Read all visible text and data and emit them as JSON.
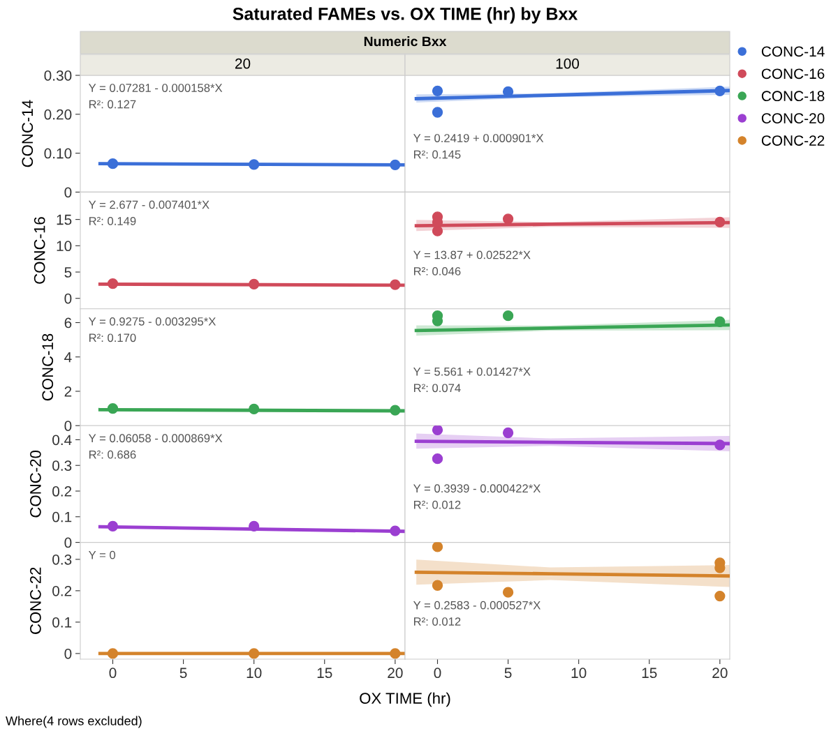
{
  "chart_data": [
    {
      "type": "scatter",
      "subtitle": "20",
      "ylabel": "CONC-14",
      "xlim": [
        -2.3,
        20.7
      ],
      "ylim": [
        0,
        0.3
      ],
      "yticks": [
        0,
        {
          "value": 0.1,
          "label": "0.10"
        },
        {
          "value": 0.2,
          "label": "0.20"
        },
        {
          "value": 0.3,
          "label": "0.30"
        }
      ],
      "tick_labels": "y",
      "marker": "circle",
      "legend": "right",
      "annotations": [
        "Y = 0.07281 - 0.000158*X",
        "R²: 0.127"
      ],
      "series": [
        {
          "name": "CONC-14",
          "color": "#3b6fd8",
          "x": [
            0,
            10,
            20
          ],
          "values": [
            0.073,
            0.071,
            0.07
          ]
        },
        {
          "type": "line",
          "marker": "none",
          "color": "#3b6fd8",
          "x": [
            -0.9,
            20.7
          ],
          "values": [
            0.073,
            0.07
          ]
        }
      ]
    },
    {
      "type": "scatter",
      "subtitle": "100",
      "xlim": [
        -2.3,
        20.7
      ],
      "ylim": [
        0,
        0.3
      ],
      "tick_labels": false,
      "marker": "circle",
      "annotations": [
        "Y = 0.2419 + 0.000901*X",
        "R²: 0.145"
      ],
      "series": [
        {
          "color": "#3b6fd8",
          "x": [
            0,
            0,
            5,
            20
          ],
          "values": [
            0.26,
            0.205,
            0.258,
            0.26
          ]
        },
        {
          "type": "line",
          "marker": "none",
          "color": "#3b6fd8",
          "x": [
            -1.5,
            8,
            20.7
          ],
          "values": [
            0.24,
            0.249,
            0.261
          ],
          "lower": [
            0.23,
            0.244,
            0.25
          ],
          "upper": [
            0.251,
            0.254,
            0.271
          ]
        }
      ]
    },
    {
      "type": "scatter",
      "ylabel": "CONC-16",
      "xlim": [
        -2.3,
        20.7
      ],
      "ylim": [
        -2,
        20.2
      ],
      "yticks": [
        0,
        5,
        10,
        15
      ],
      "tick_labels": "y",
      "marker": "circle",
      "annotations": [
        "Y = 2.677 - 0.007401*X",
        "R²: 0.149"
      ],
      "series": [
        {
          "name": "CONC-16",
          "color": "#d04a5a",
          "x": [
            0,
            10,
            20
          ],
          "values": [
            2.8,
            2.7,
            2.6
          ]
        },
        {
          "type": "line",
          "marker": "none",
          "color": "#d04a5a",
          "x": [
            -0.9,
            20.7
          ],
          "values": [
            2.7,
            2.5
          ]
        }
      ]
    },
    {
      "type": "scatter",
      "xlim": [
        -2.3,
        20.7
      ],
      "ylim": [
        -2,
        20.2
      ],
      "tick_labels": false,
      "marker": "circle",
      "annotations": [
        "Y = 13.87 + 0.02522*X",
        "R²: 0.046"
      ],
      "series": [
        {
          "color": "#d04a5a",
          "x": [
            0,
            0,
            0,
            5,
            20
          ],
          "values": [
            15.5,
            12.8,
            14.5,
            15.1,
            14.5
          ]
        },
        {
          "type": "line",
          "marker": "none",
          "color": "#d04a5a",
          "x": [
            -1.5,
            8,
            20.7
          ],
          "values": [
            13.8,
            14.1,
            14.4
          ],
          "lower": [
            12.8,
            13.6,
            13.4
          ],
          "upper": [
            14.9,
            14.5,
            15.4
          ]
        }
      ]
    },
    {
      "type": "scatter",
      "ylabel": "CONC-18",
      "xlim": [
        -2.3,
        20.7
      ],
      "ylim": [
        0,
        6.8
      ],
      "yticks": [
        0,
        2,
        4,
        6
      ],
      "tick_labels": "y",
      "marker": "circle",
      "annotations": [
        "Y = 0.9275 - 0.003295*X",
        "R²: 0.170"
      ],
      "series": [
        {
          "name": "CONC-18",
          "color": "#3aa655",
          "x": [
            0,
            10,
            20
          ],
          "values": [
            1.0,
            0.97,
            0.9
          ]
        },
        {
          "type": "line",
          "marker": "none",
          "color": "#3aa655",
          "x": [
            -0.9,
            20.7
          ],
          "values": [
            0.93,
            0.86
          ]
        }
      ]
    },
    {
      "type": "scatter",
      "xlim": [
        -2.3,
        20.7
      ],
      "ylim": [
        0,
        6.8
      ],
      "tick_labels": false,
      "marker": "circle",
      "annotations": [
        "Y = 5.561 + 0.01427*X",
        "R²: 0.074"
      ],
      "series": [
        {
          "color": "#3aa655",
          "x": [
            0,
            0,
            5,
            20
          ],
          "values": [
            6.4,
            6.1,
            6.4,
            6.05
          ]
        },
        {
          "type": "line",
          "marker": "none",
          "color": "#3aa655",
          "x": [
            -1.5,
            8,
            20.7
          ],
          "values": [
            5.54,
            5.68,
            5.86
          ],
          "lower": [
            5.24,
            5.53,
            5.56
          ],
          "upper": [
            5.84,
            5.83,
            6.16
          ]
        }
      ]
    },
    {
      "type": "scatter",
      "ylabel": "CONC-20",
      "xlim": [
        -2.3,
        20.7
      ],
      "ylim": [
        0,
        0.455
      ],
      "yticks": [
        0,
        0.1,
        0.2,
        0.3,
        0.4
      ],
      "tick_labels": "y",
      "marker": "circle",
      "annotations": [
        "Y = 0.06058 - 0.000869*X",
        "R²: 0.686"
      ],
      "series": [
        {
          "name": "CONC-20",
          "color": "#9b3fd1",
          "x": [
            0,
            10,
            20
          ],
          "values": [
            0.063,
            0.063,
            0.045
          ]
        },
        {
          "type": "line",
          "marker": "none",
          "color": "#9b3fd1",
          "x": [
            -0.9,
            20.7
          ],
          "values": [
            0.061,
            0.043
          ]
        }
      ]
    },
    {
      "type": "scatter",
      "xlim": [
        -2.3,
        20.7
      ],
      "ylim": [
        0,
        0.455
      ],
      "tick_labels": false,
      "marker": "circle",
      "annotations": [
        "Y = 0.3939 - 0.000422*X",
        "R²: 0.012"
      ],
      "series": [
        {
          "color": "#9b3fd1",
          "x": [
            0,
            0,
            5,
            20
          ],
          "values": [
            0.438,
            0.326,
            0.427,
            0.38
          ]
        },
        {
          "type": "line",
          "marker": "none",
          "color": "#9b3fd1",
          "x": [
            -1.5,
            8,
            20.7
          ],
          "values": [
            0.394,
            0.39,
            0.385
          ],
          "lower": [
            0.365,
            0.376,
            0.355
          ],
          "upper": [
            0.424,
            0.405,
            0.415
          ]
        }
      ]
    },
    {
      "type": "scatter",
      "ylabel": "CONC-22",
      "xlim": [
        -2.3,
        20.7
      ],
      "ylim": [
        -0.018,
        0.354
      ],
      "xticks": [
        0,
        5,
        10,
        15,
        20
      ],
      "yticks": [
        0,
        0.1,
        0.2,
        0.3
      ],
      "marker": "circle",
      "annotations": [
        "Y = 0"
      ],
      "series": [
        {
          "name": "CONC-22",
          "color": "#d4832b",
          "x": [
            0,
            10,
            20
          ],
          "values": [
            0,
            0,
            0
          ]
        },
        {
          "type": "line",
          "marker": "none",
          "color": "#d4832b",
          "x": [
            -0.9,
            20.7
          ],
          "values": [
            0,
            0
          ]
        }
      ]
    },
    {
      "type": "scatter",
      "xlim": [
        -2.3,
        20.7
      ],
      "ylim": [
        -0.018,
        0.354
      ],
      "xticks": [
        0,
        5,
        10,
        15,
        20
      ],
      "tick_labels": "x",
      "marker": "circle",
      "annotations": [
        "Y = 0.2583 - 0.000527*X",
        "R²: 0.012"
      ],
      "series": [
        {
          "color": "#d4832b",
          "x": [
            0,
            0,
            5,
            20,
            20,
            20
          ],
          "values": [
            0.34,
            0.217,
            0.195,
            0.289,
            0.273,
            0.183
          ]
        },
        {
          "type": "line",
          "marker": "none",
          "color": "#d4832b",
          "x": [
            -1.5,
            8,
            20.7
          ],
          "values": [
            0.259,
            0.254,
            0.247
          ],
          "lower": [
            0.219,
            0.234,
            0.212
          ],
          "upper": [
            0.299,
            0.274,
            0.282
          ]
        }
      ]
    },
    {
      "type": "other",
      "title": "Saturated FAMEs vs. OX TIME (hr) by Bxx",
      "subtitle": "Numeric Bxx",
      "xlabel": "OX TIME (hr)",
      "annotations": [
        "Where(4 rows excluded)"
      ]
    }
  ]
}
